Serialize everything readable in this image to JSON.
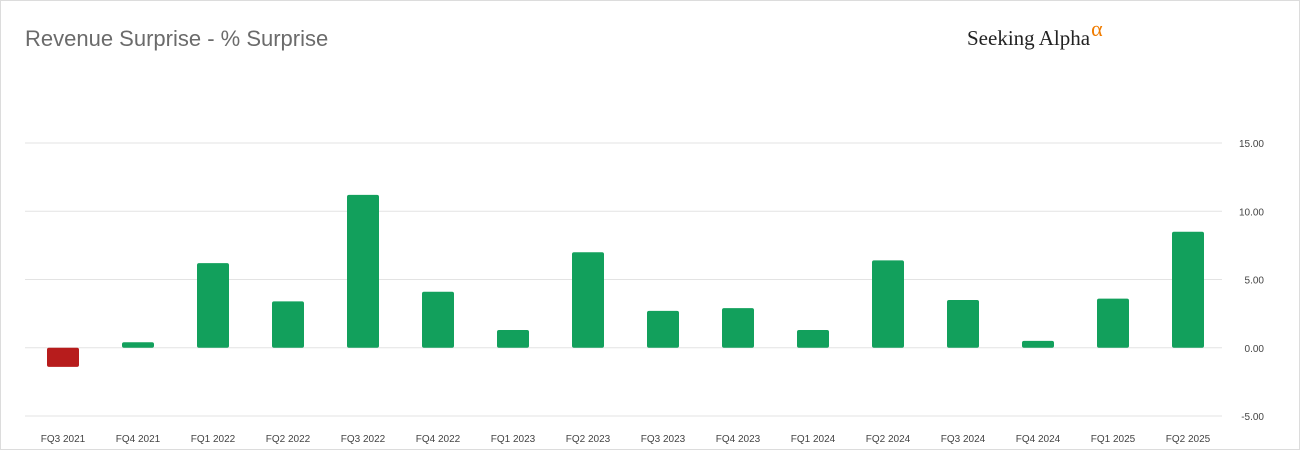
{
  "title": "Revenue Surprise - % Surprise",
  "brand": {
    "name": "Seeking Alpha",
    "mark": "α",
    "mark_color": "#f07c00"
  },
  "colors": {
    "positive": "#12a05c",
    "negative": "#b71c1c",
    "grid": "#e3e3e3",
    "tick_text": "#444444"
  },
  "chart_data": {
    "type": "bar",
    "title": "Revenue Surprise - % Surprise",
    "xlabel": "",
    "ylabel": "",
    "ylim": [
      -5,
      15
    ],
    "yticks": [
      15,
      10,
      5,
      0,
      -5
    ],
    "ytick_labels": [
      "15.00",
      "10.00",
      "5.00",
      "0.00",
      "-5.00"
    ],
    "y_axis_side": "right",
    "grid": true,
    "legend": "none",
    "categories": [
      "FQ3 2021",
      "FQ4 2021",
      "FQ1 2022",
      "FQ2 2022",
      "FQ3 2022",
      "FQ4 2022",
      "FQ1 2023",
      "FQ2 2023",
      "FQ3 2023",
      "FQ4 2023",
      "FQ1 2024",
      "FQ2 2024",
      "FQ3 2024",
      "FQ4 2024",
      "FQ1 2025",
      "FQ2 2025"
    ],
    "values": [
      -1.4,
      0.4,
      6.2,
      3.4,
      11.2,
      4.1,
      1.3,
      7.0,
      2.7,
      2.9,
      1.3,
      6.4,
      3.5,
      0.5,
      3.6,
      8.5
    ]
  }
}
